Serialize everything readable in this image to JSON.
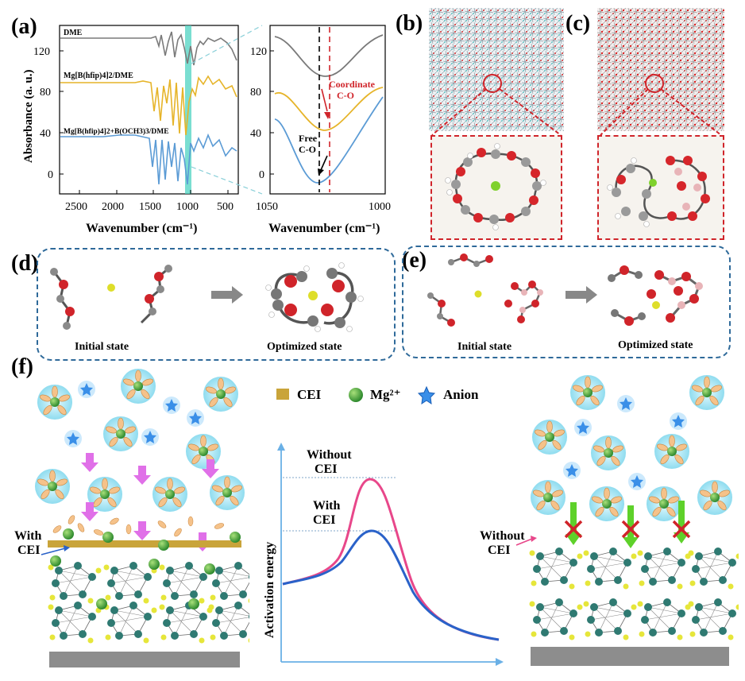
{
  "panels": {
    "a": "(a)",
    "b": "(b)",
    "c": "(c)",
    "d": "(d)",
    "e": "(e)",
    "f": "(f)"
  },
  "chart_a": {
    "ylabel": "Absorbance (a. u.)",
    "xlabel": "Wavenumber (cm⁻¹)",
    "yticks": [
      "120",
      "80",
      "40",
      "0"
    ],
    "xticks": [
      "2500",
      "2000",
      "1500",
      "1000",
      "500"
    ],
    "series": [
      {
        "name": "DME",
        "color": "#7a7a7a"
      },
      {
        "name": "Mg[B(hfip)4]2/DME",
        "color": "#e6b429"
      },
      {
        "name": "Mg[B(hfip)4]2+B(OCH3)3/DME",
        "color": "#5b9bd5"
      }
    ],
    "highlight_color": "#4dd3c2"
  },
  "chart_a_zoom": {
    "xlabel": "Wavenumber (cm⁻¹)",
    "yticks": [
      "120",
      "80",
      "40",
      "0"
    ],
    "xticks": [
      "1050",
      "1000"
    ],
    "annot_coord": "Coordinate",
    "annot_coord2": "C-O",
    "annot_free": "Free",
    "annot_free2": "C-O"
  },
  "panel_d": {
    "initial": "Initial state",
    "optimized": "Optimized state"
  },
  "panel_e": {
    "initial": "Initial state",
    "optimized": "Optimized state"
  },
  "panel_f": {
    "legend": {
      "cei": "CEI",
      "mg": "Mg²⁺",
      "anion": "Anion"
    },
    "with_cei": "With",
    "with_cei2": "CEI",
    "without_cei": "Without",
    "without_cei2": "CEI",
    "energy_ylabel": "Activation energy",
    "curve_without": "Without",
    "curve_without2": "CEI",
    "curve_with": "With",
    "curve_with2": "CEI",
    "colors": {
      "without": "#e8478a",
      "with": "#2a62c9",
      "cei": "#c9a43a"
    }
  }
}
